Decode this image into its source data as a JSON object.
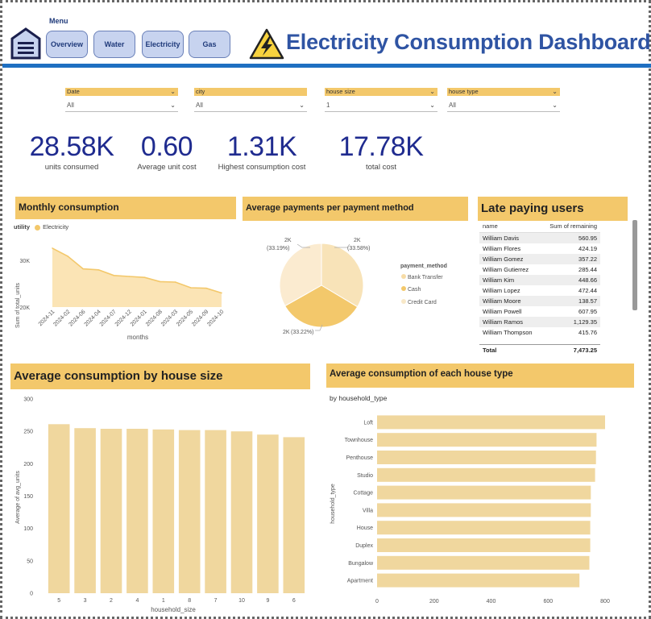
{
  "header": {
    "menu_label": "Menu",
    "nav": [
      "Overview",
      "Water",
      "Electricity",
      "Gas"
    ],
    "title": "Electricity Consumption Dashboard"
  },
  "slicers": [
    {
      "label": "Date",
      "value": "All"
    },
    {
      "label": "city",
      "value": "All"
    },
    {
      "label": "house size",
      "value": "1"
    },
    {
      "label": "house type",
      "value": "All"
    }
  ],
  "kpis": [
    {
      "value": "28.58K",
      "label": "units consumed"
    },
    {
      "value": "0.60",
      "label": "Average unit cost"
    },
    {
      "value": "1.31K",
      "label": "Highest consumption cost"
    },
    {
      "value": "17.78K",
      "label": "total cost"
    }
  ],
  "monthly": {
    "title": "Monthly consumption",
    "legend_title": "utility",
    "legend_item": "Electricity",
    "ylabel": "Sum of total_units",
    "xlabel": "months",
    "yticks": [
      "30K",
      "20K"
    ],
    "months": [
      "2024-11",
      "2024-02",
      "2024-06",
      "2024-04",
      "2024-07",
      "2024-12",
      "2024-01",
      "2024-08",
      "2024-03",
      "2024-05",
      "2024-09",
      "2024-10"
    ]
  },
  "payments": {
    "title": "Average payments per payment method",
    "legend_title": "payment_method",
    "methods": [
      "Bank Transfer",
      "Cash",
      "Credit Card"
    ],
    "labels": [
      {
        "value": "2K",
        "pct": "(33.58%)"
      },
      {
        "value": "2K",
        "pct": "(33.22%)"
      },
      {
        "value": "2K",
        "pct": "(33.19%)"
      }
    ]
  },
  "late": {
    "title": "Late paying users",
    "col1": "name",
    "col2": "Sum of remaining",
    "rows": [
      [
        "William Davis",
        "560.95"
      ],
      [
        "William Flores",
        "424.19"
      ],
      [
        "William Gomez",
        "357.22"
      ],
      [
        "William Gutierrez",
        "285.44"
      ],
      [
        "William Kim",
        "448.66"
      ],
      [
        "William Lopez",
        "472.44"
      ],
      [
        "William Moore",
        "138.57"
      ],
      [
        "William Powell",
        "607.95"
      ],
      [
        "William Ramos",
        "1,129.35"
      ],
      [
        "William Thompson",
        "415.76"
      ]
    ],
    "total_label": "Total",
    "total_value": "7,473.25"
  },
  "colors": {
    "accent": "#f3c86b",
    "bar": "#f0d79e",
    "kpi": "#1f2b8f",
    "title": "#2f54a3"
  },
  "chart_data": [
    {
      "type": "area",
      "title": "Monthly consumption",
      "xlabel": "months",
      "ylabel": "Sum of total_units",
      "categories": [
        "2024-11",
        "2024-02",
        "2024-06",
        "2024-04",
        "2024-07",
        "2024-12",
        "2024-01",
        "2024-08",
        "2024-03",
        "2024-05",
        "2024-09",
        "2024-10"
      ],
      "series": [
        {
          "name": "Electricity",
          "values": [
            32500,
            30800,
            28100,
            27900,
            26700,
            26500,
            26300,
            25400,
            25300,
            24100,
            24000,
            23000
          ]
        }
      ],
      "ylim": [
        20000,
        33000
      ]
    },
    {
      "type": "pie",
      "title": "Average payments per payment method",
      "categories": [
        "Bank Transfer",
        "Cash",
        "Credit Card"
      ],
      "values": [
        33.58,
        33.22,
        33.19
      ]
    },
    {
      "type": "bar",
      "title": "Average consumption by house size",
      "xlabel": "household_size",
      "ylabel": "Average of avg_units",
      "categories": [
        "5",
        "3",
        "2",
        "4",
        "1",
        "8",
        "7",
        "10",
        "9",
        "6"
      ],
      "values": [
        261,
        255,
        254,
        254,
        253,
        252,
        252,
        250,
        245,
        241
      ],
      "ylim": [
        0,
        300
      ],
      "yticks": [
        0,
        50,
        100,
        150,
        200,
        250,
        300
      ]
    },
    {
      "type": "bar",
      "orientation": "horizontal",
      "title": "Average consumption of each house type",
      "subtitle": "by household_type",
      "ylabel": "household_type",
      "categories": [
        "Loft",
        "Townhouse",
        "Penthouse",
        "Studio",
        "Cottage",
        "Villa",
        "House",
        "Duplex",
        "Bungalow",
        "Apartment"
      ],
      "values": [
        800,
        770,
        768,
        765,
        750,
        750,
        748,
        748,
        745,
        710
      ],
      "xlim": [
        0,
        800
      ],
      "xticks": [
        0,
        200,
        400,
        600,
        800
      ]
    }
  ]
}
